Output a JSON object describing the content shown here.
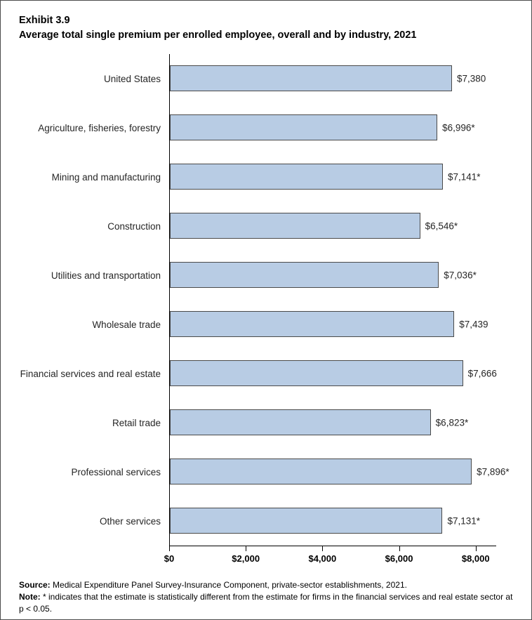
{
  "title": {
    "exhibit": "Exhibit 3.9",
    "text": "Average total single premium per enrolled employee, overall and by industry, 2021"
  },
  "chart_data": {
    "type": "bar",
    "orientation": "horizontal",
    "title": "Average total single premium per enrolled employee, overall and by industry, 2021",
    "categories": [
      "United States",
      "Agriculture, fisheries, forestry",
      "Mining and manufacturing",
      "Construction",
      "Utilities and transportation",
      "Wholesale trade",
      "Financial services and real estate",
      "Retail trade",
      "Professional services",
      "Other services"
    ],
    "values": [
      7380,
      6996,
      7141,
      6546,
      7036,
      7439,
      7666,
      6823,
      7896,
      7131
    ],
    "value_labels": [
      "$7,380",
      "$6,996*",
      "$7,141*",
      "$6,546*",
      "$7,036*",
      "$7,439",
      "$7,666",
      "$6,823*",
      "$7,896*",
      "$7,131*"
    ],
    "xlim": [
      0,
      8536
    ],
    "x_ticks": [
      0,
      2000,
      4000,
      6000,
      8000
    ],
    "x_tick_labels": [
      "$0",
      "$2,000",
      "$4,000",
      "$6,000",
      "$8,000"
    ],
    "bar_color": "#b8cce4",
    "bar_border_color": "#4a4a4a",
    "grid": false,
    "legend": "none"
  },
  "footer": {
    "source_label": "Source:",
    "source_text": " Medical Expenditure Panel Survey-Insurance Component, private-sector establishments, 2021.",
    "note_label": "Note:",
    "note_text": " * indicates that the estimate is statistically different from the estimate for firms in the financial services and real estate sector at p < 0.05."
  }
}
